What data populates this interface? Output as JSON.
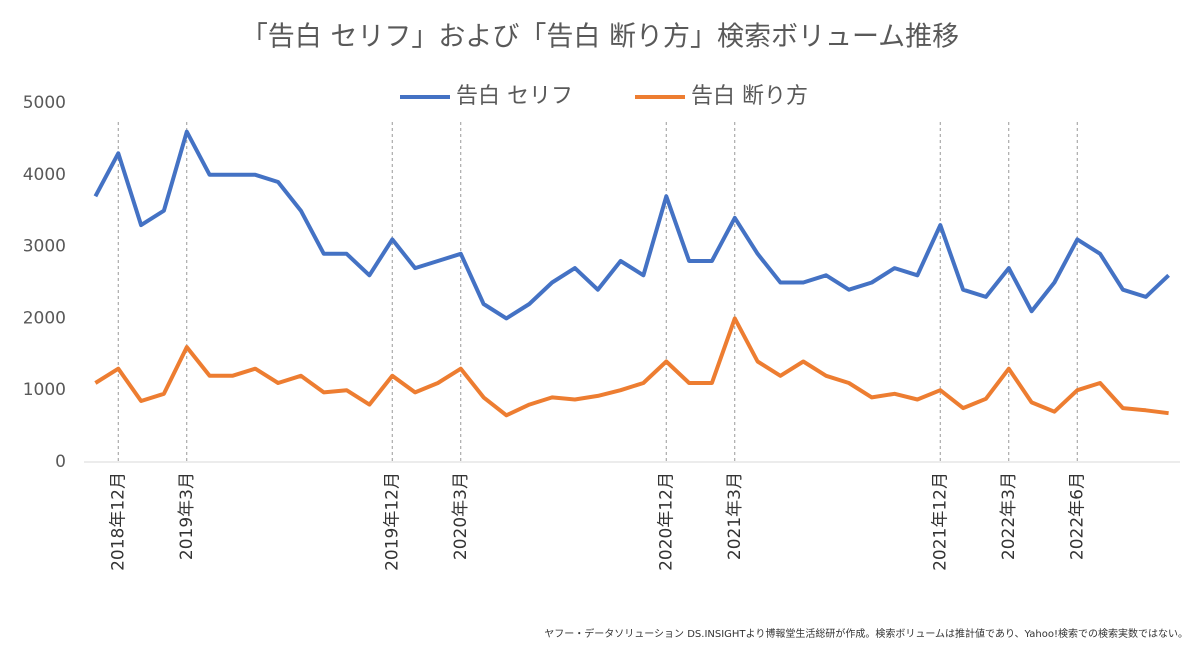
{
  "chart_data": {
    "type": "line",
    "title": "「告白 セリフ」および「告白 断り方」検索ボリューム推移",
    "footnote": "ヤフー・データソリューション DS.INSIGHTより博報堂生活総研が作成。検索ボリュームは推計値であり、Yahoo!検索での検索実数ではない。",
    "categories": [
      null,
      "2018年12月",
      null,
      null,
      "2019年3月",
      null,
      null,
      null,
      null,
      null,
      null,
      null,
      null,
      "2019年12月",
      null,
      null,
      "2020年3月",
      null,
      null,
      null,
      null,
      null,
      null,
      null,
      null,
      "2020年12月",
      null,
      null,
      "2021年3月",
      null,
      null,
      null,
      null,
      null,
      null,
      null,
      null,
      "2021年12月",
      null,
      null,
      "2022年3月",
      null,
      null,
      "2022年6月",
      null,
      null,
      null,
      null
    ],
    "series": [
      {
        "name": "告白 セリフ",
        "color": "#4472c4",
        "values": [
          3700,
          4300,
          3300,
          3500,
          4600,
          4000,
          4000,
          4000,
          3900,
          3500,
          2900,
          2900,
          2600,
          3100,
          2700,
          2800,
          2900,
          2200,
          2000,
          2200,
          2500,
          2700,
          2400,
          2800,
          2600,
          3700,
          2800,
          2800,
          3400,
          2900,
          2500,
          2500,
          2600,
          2400,
          2500,
          2700,
          2600,
          3300,
          2400,
          2300,
          2700,
          2100,
          2500,
          3100,
          2900,
          2400,
          2300,
          2600
        ]
      },
      {
        "name": "告白 断り方",
        "color": "#ed7d31",
        "values": [
          1100,
          1300,
          850,
          950,
          1600,
          1200,
          1200,
          1300,
          1100,
          1200,
          970,
          1000,
          800,
          1200,
          970,
          1100,
          1300,
          900,
          650,
          800,
          900,
          870,
          920,
          1000,
          1100,
          1400,
          1100,
          1100,
          2000,
          1400,
          1200,
          1400,
          1200,
          1100,
          900,
          950,
          870,
          1000,
          750,
          880,
          1300,
          830,
          700,
          1000,
          1100,
          750,
          720,
          680
        ]
      }
    ],
    "ylim": [
      0,
      5000
    ],
    "yticks": [
      0,
      1000,
      2000,
      3000,
      4000,
      5000
    ],
    "legend": "top"
  }
}
